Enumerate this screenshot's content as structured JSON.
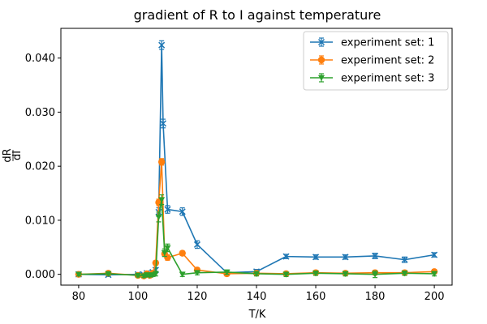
{
  "chart_data": {
    "type": "line",
    "title": "gradient of R to I against temperature",
    "xlabel": "T/K",
    "ylabel_num": "dR",
    "ylabel_den": "dI",
    "xlim": [
      74,
      206
    ],
    "ylim": [
      -0.002,
      0.0455
    ],
    "x_ticks": [
      80,
      100,
      120,
      140,
      160,
      180,
      200
    ],
    "y_ticks": [
      0.0,
      0.01,
      0.02,
      0.03,
      0.04
    ],
    "y_tick_labels": [
      "0.000",
      "0.010",
      "0.020",
      "0.030",
      "0.040"
    ],
    "legend_position": "top-right",
    "grid": false,
    "series": [
      {
        "name": "experiment set: 1",
        "color": "#1f77b4",
        "marker": "x",
        "x": [
          80,
          90,
          100,
          102,
          103,
          104,
          105,
          106,
          107,
          108,
          108.5,
          110,
          115,
          120,
          130,
          140,
          150,
          160,
          170,
          180,
          190,
          200
        ],
        "y": [
          0.0,
          -0.0001,
          0.0,
          -0.0001,
          0.0002,
          0.0,
          0.0004,
          0.0008,
          0.0115,
          0.0424,
          0.0279,
          0.012,
          0.0116,
          0.0055,
          0.0003,
          0.0005,
          0.0033,
          0.0032,
          0.0032,
          0.0034,
          0.0027,
          0.0036
        ],
        "err": [
          0.0003,
          0.0003,
          0.0003,
          0.0003,
          0.0003,
          0.0003,
          0.0003,
          0.0004,
          0.0008,
          0.0008,
          0.0008,
          0.0007,
          0.0007,
          0.0007,
          0.0004,
          0.0004,
          0.0004,
          0.0004,
          0.0004,
          0.0005,
          0.0005,
          0.0004
        ]
      },
      {
        "name": "experiment set: 2",
        "color": "#ff7f0e",
        "marker": "o",
        "x": [
          80,
          90,
          100,
          102,
          103,
          104,
          105,
          106,
          107,
          108,
          109,
          110,
          115,
          120,
          130,
          140,
          150,
          160,
          170,
          180,
          190,
          200
        ],
        "y": [
          0.0,
          0.0002,
          -0.0002,
          -0.0003,
          0.0001,
          -0.0002,
          0.0002,
          0.0021,
          0.0133,
          0.0208,
          0.0038,
          0.0031,
          0.0039,
          0.0008,
          0.0001,
          0.0002,
          0.0001,
          0.0003,
          0.0002,
          0.0003,
          0.0003,
          0.0005
        ],
        "err": [
          0.0003,
          0.0003,
          0.0003,
          0.0003,
          0.0003,
          0.0003,
          0.0003,
          0.0004,
          0.0006,
          0.0006,
          0.0005,
          0.0005,
          0.0004,
          0.0004,
          0.0004,
          0.0004,
          0.0004,
          0.0004,
          0.0004,
          0.0004,
          0.0004,
          0.0004
        ]
      },
      {
        "name": "experiment set: 3",
        "color": "#2ca02c",
        "marker": "v",
        "x": [
          80,
          90,
          100,
          102,
          103,
          104,
          105,
          106,
          107,
          108,
          109,
          110,
          115,
          120,
          130,
          140,
          150,
          160,
          170,
          180,
          190,
          200
        ],
        "y": [
          0.0,
          0.0001,
          -0.0002,
          -0.0003,
          -0.0001,
          -0.0002,
          -0.0001,
          0.0001,
          0.0106,
          0.0138,
          0.004,
          0.0049,
          0.0,
          0.0003,
          0.0004,
          0.0001,
          0.0,
          0.0002,
          0.0001,
          0.0,
          0.0002,
          0.0001
        ],
        "err": [
          0.0003,
          0.0003,
          0.0003,
          0.0003,
          0.0003,
          0.0003,
          0.0003,
          0.0004,
          0.0009,
          0.0009,
          0.0007,
          0.0007,
          0.0004,
          0.0004,
          0.0004,
          0.0004,
          0.0004,
          0.0004,
          0.0004,
          0.0006,
          0.0004,
          0.0004
        ]
      }
    ]
  }
}
